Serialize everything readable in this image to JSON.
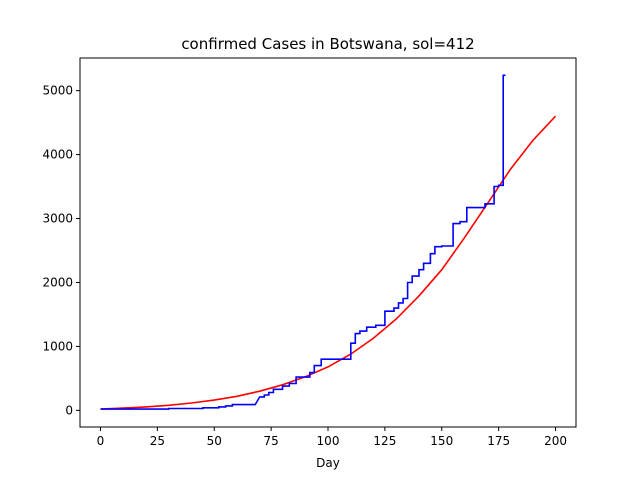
{
  "chart_data": {
    "type": "line",
    "title": "confirmed Cases in Botswana, sol=412",
    "xlabel": "Day",
    "ylabel": "",
    "xlim": [
      -9,
      209
    ],
    "ylim": [
      -260,
      5510
    ],
    "xticks": [
      0,
      25,
      50,
      75,
      100,
      125,
      150,
      175,
      200
    ],
    "yticks": [
      0,
      1000,
      2000,
      3000,
      4000,
      5000
    ],
    "grid": false,
    "legend": "none",
    "series": [
      {
        "color": "#ff0000",
        "x": [
          0,
          10,
          20,
          30,
          40,
          50,
          60,
          70,
          80,
          90,
          100,
          110,
          120,
          130,
          140,
          150,
          160,
          170,
          180,
          190,
          200
        ],
        "y": [
          20,
          35,
          55,
          80,
          115,
          160,
          220,
          300,
          400,
          525,
          680,
          880,
          1130,
          1430,
          1790,
          2200,
          2700,
          3230,
          3760,
          4220,
          4600
        ]
      },
      {
        "color": "#0000ff",
        "x": [
          0,
          30,
          30,
          45,
          45,
          52,
          52,
          55,
          55,
          58,
          58,
          68,
          70,
          72,
          72,
          74,
          74,
          76,
          76,
          80,
          80,
          83,
          83,
          86,
          86,
          92,
          92,
          94,
          94,
          97,
          97,
          110,
          110,
          112,
          112,
          114,
          114,
          117,
          117,
          121,
          121,
          125,
          125,
          129,
          129,
          131,
          131,
          133,
          133,
          135,
          135,
          137,
          137,
          140,
          140,
          142,
          142,
          145,
          145,
          147,
          147,
          150,
          150,
          155,
          155,
          158,
          158,
          161,
          161,
          169,
          169,
          173,
          173,
          175,
          175,
          177,
          177,
          178
        ],
        "y": [
          20,
          20,
          30,
          30,
          40,
          40,
          55,
          55,
          70,
          70,
          90,
          90,
          210,
          210,
          240,
          240,
          280,
          280,
          330,
          330,
          380,
          380,
          420,
          420,
          520,
          520,
          590,
          590,
          700,
          700,
          800,
          800,
          1050,
          1050,
          1200,
          1200,
          1240,
          1240,
          1300,
          1300,
          1330,
          1330,
          1550,
          1550,
          1600,
          1600,
          1680,
          1680,
          1750,
          1750,
          2000,
          2000,
          2100,
          2100,
          2200,
          2200,
          2300,
          2300,
          2450,
          2450,
          2560,
          2560,
          2570,
          2570,
          2920,
          2920,
          2950,
          2950,
          3170,
          3170,
          3230,
          3230,
          3500,
          3500,
          3520,
          3520,
          5240,
          5240
        ]
      }
    ]
  }
}
